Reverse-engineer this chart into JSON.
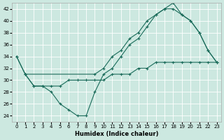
{
  "xlabel": "Humidex (Indice chaleur)",
  "xlim": [
    -0.5,
    23.5
  ],
  "ylim": [
    23,
    43
  ],
  "yticks": [
    24,
    26,
    28,
    30,
    32,
    34,
    36,
    38,
    40,
    42
  ],
  "xticks": [
    0,
    1,
    2,
    3,
    4,
    5,
    6,
    7,
    8,
    9,
    10,
    11,
    12,
    13,
    14,
    15,
    16,
    17,
    18,
    19,
    20,
    21,
    22,
    23
  ],
  "bg_color": "#cce8e0",
  "line_color": "#1a6b5a",
  "line1_x": [
    0,
    1,
    2,
    3,
    4,
    5,
    6,
    7,
    8,
    9,
    10,
    11,
    12,
    13,
    14,
    15,
    16,
    17,
    18,
    19,
    20,
    21,
    22,
    23
  ],
  "line1_y": [
    34,
    31,
    29,
    29,
    28,
    26,
    25,
    24,
    24,
    28,
    31,
    32,
    34,
    36,
    37,
    39,
    41,
    42,
    42,
    41,
    40,
    38,
    35,
    33
  ],
  "line2_x": [
    0,
    1,
    9,
    10,
    11,
    12,
    13,
    14,
    15,
    16,
    17,
    18,
    19,
    20,
    21,
    22,
    23
  ],
  "line2_y": [
    34,
    31,
    31,
    32,
    34,
    35,
    37,
    38,
    40,
    41,
    42,
    43,
    41,
    40,
    38,
    35,
    33
  ],
  "line3_x": [
    1,
    2,
    3,
    4,
    5,
    6,
    7,
    8,
    9,
    10,
    11,
    12,
    13,
    14,
    15,
    16,
    17,
    18,
    19,
    20,
    21,
    22,
    23
  ],
  "line3_y": [
    31,
    29,
    29,
    29,
    29,
    30,
    30,
    30,
    30,
    30,
    31,
    31,
    31,
    32,
    32,
    33,
    33,
    33,
    33,
    33,
    33,
    33,
    33
  ]
}
